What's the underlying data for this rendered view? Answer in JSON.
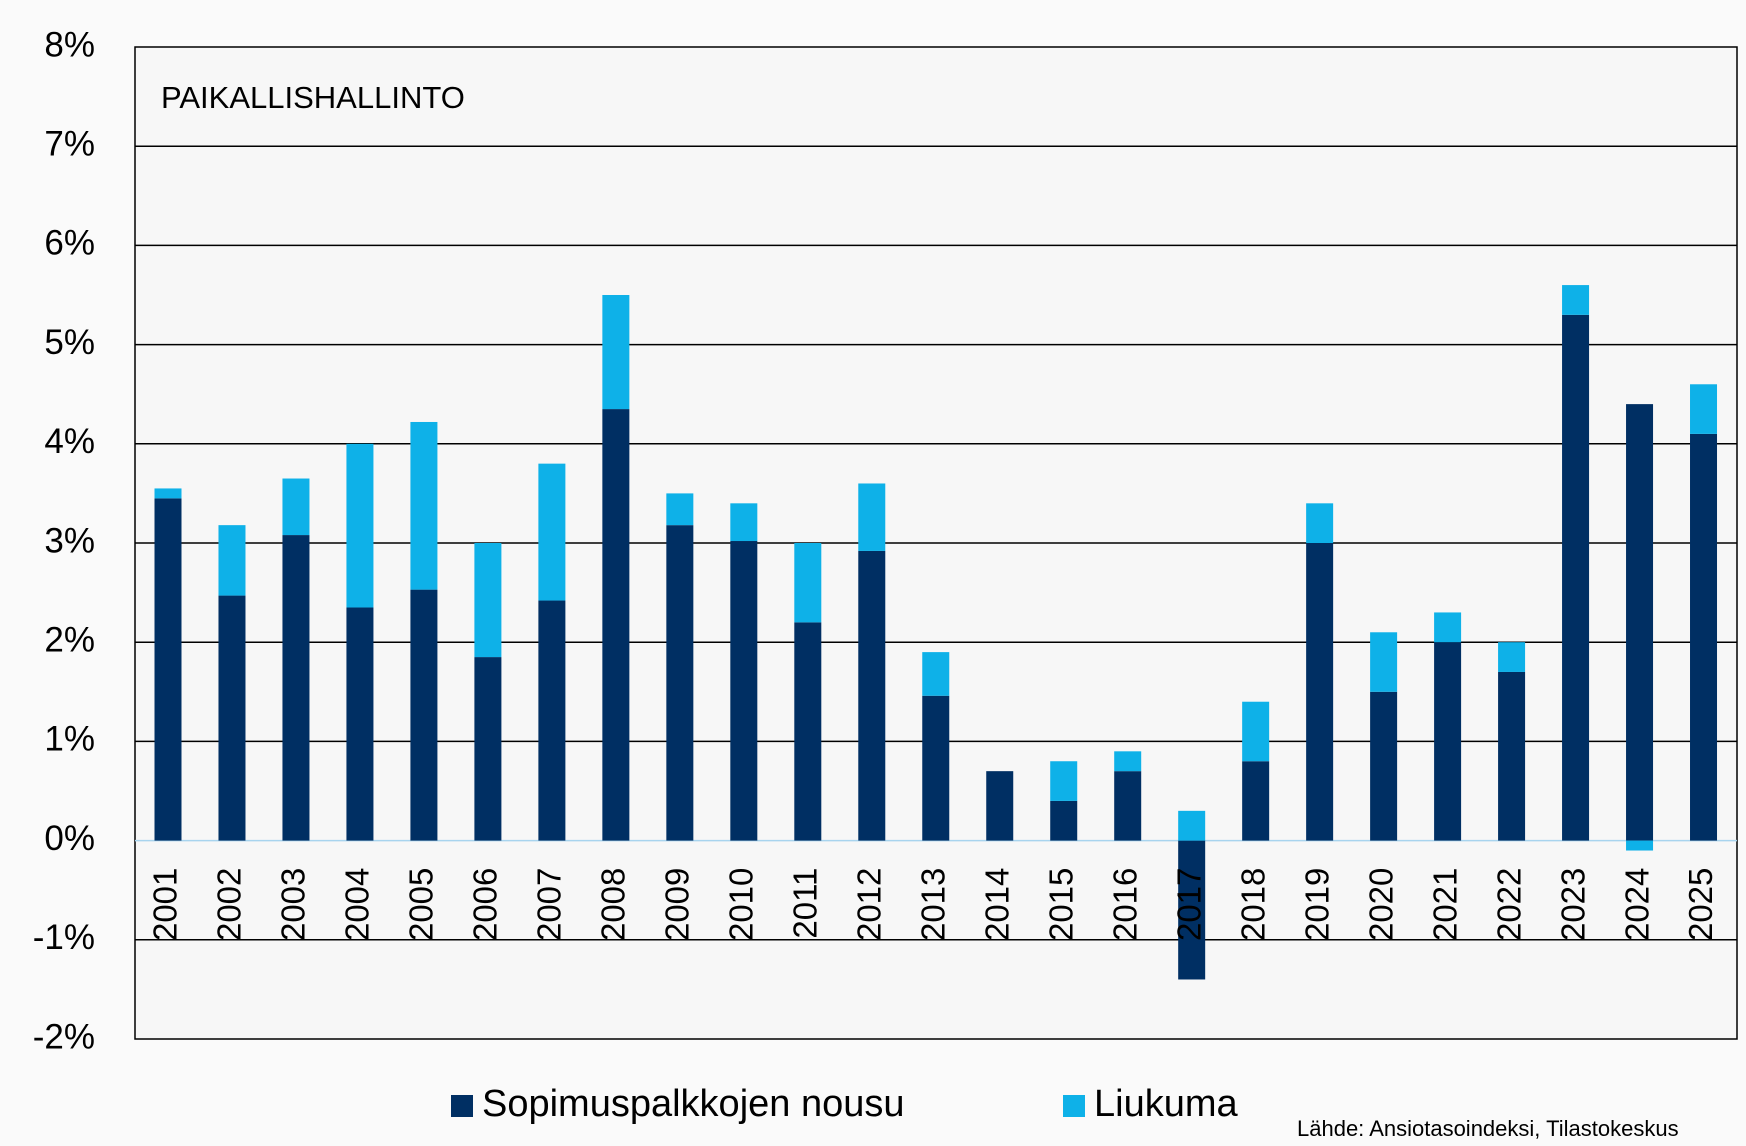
{
  "chart_data": {
    "type": "stacked_bar",
    "annotation": "PAIKALLISHALLINTO",
    "source": "Lähde: Ansiotasoindeksi, Tilastokeskus",
    "categories": [
      "2001",
      "2002",
      "2003",
      "2004",
      "2005",
      "2006",
      "2007",
      "2008",
      "2009",
      "2010",
      "2011",
      "2012",
      "2013",
      "2014",
      "2015",
      "2016",
      "2017",
      "2018",
      "2019",
      "2020",
      "2021",
      "2022",
      "2023",
      "2024",
      "2025"
    ],
    "series": [
      {
        "name": "Sopimuspalkkojen nousu",
        "color": "#002f63",
        "values": [
          3.45,
          2.47,
          3.08,
          2.35,
          2.53,
          1.85,
          2.42,
          4.35,
          3.18,
          3.02,
          2.2,
          2.92,
          1.46,
          0.7,
          0.4,
          0.7,
          -1.4,
          0.8,
          3.0,
          1.5,
          2.0,
          1.7,
          5.3,
          4.4,
          4.1
        ]
      },
      {
        "name": "Liukuma",
        "color": "#0eb1e8",
        "values": [
          0.1,
          0.71,
          0.57,
          1.65,
          1.69,
          1.15,
          1.38,
          1.15,
          0.32,
          0.38,
          0.8,
          0.68,
          0.44,
          0,
          0.4,
          0.2,
          0.3,
          0.6,
          0.4,
          0.6,
          0.3,
          0.3,
          0.3,
          -0.1,
          0.5
        ]
      }
    ],
    "ylim": [
      -2,
      8
    ],
    "yticks": [
      {
        "value": -2,
        "label": "-2%"
      },
      {
        "value": -1,
        "label": "-1%"
      },
      {
        "value": 0,
        "label": "0%"
      },
      {
        "value": 1,
        "label": "1%"
      },
      {
        "value": 2,
        "label": "2%"
      },
      {
        "value": 3,
        "label": "3%"
      },
      {
        "value": 4,
        "label": "4%"
      },
      {
        "value": 5,
        "label": "5%"
      },
      {
        "value": 6,
        "label": "6%"
      },
      {
        "value": 7,
        "label": "7%"
      },
      {
        "value": 8,
        "label": "8%"
      }
    ],
    "grid": true
  }
}
